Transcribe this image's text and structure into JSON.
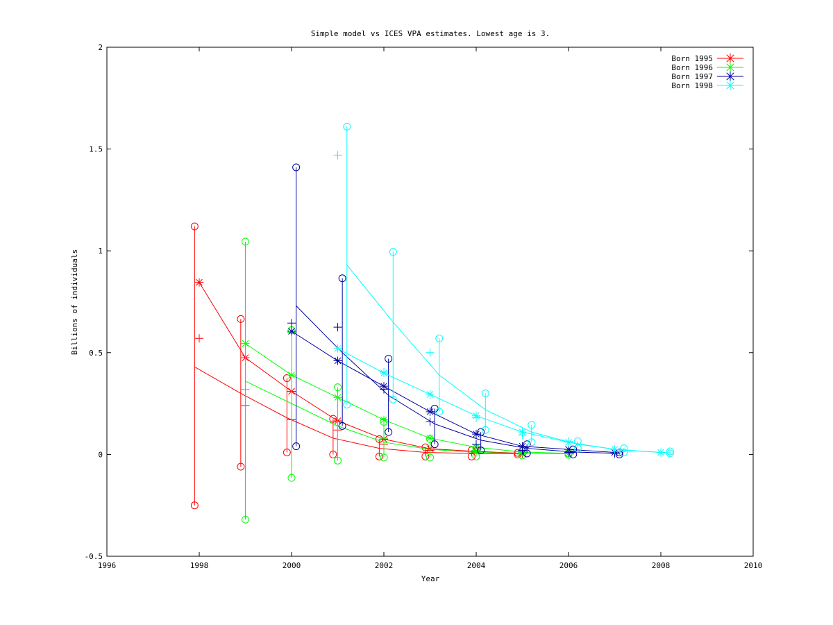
{
  "chart_data": {
    "type": "line",
    "title": "Simple model vs ICES VPA estimates. Lowest age is 3.",
    "xlabel": "Year",
    "ylabel": "Billions of individuals",
    "xlim": [
      1996,
      2010
    ],
    "ylim": [
      -0.5,
      2
    ],
    "xticks": [
      1996,
      1998,
      2000,
      2002,
      2004,
      2006,
      2008,
      2010
    ],
    "xtick_labels": [
      "1996",
      "1998",
      "2000",
      "2002",
      "2004",
      "2006",
      "2008",
      "2010"
    ],
    "yticks": [
      -0.5,
      0,
      0.5,
      1,
      1.5,
      2
    ],
    "ytick_labels": [
      "-0.5",
      "0",
      "0.5",
      "1",
      "1.5",
      "2"
    ],
    "grid": false,
    "legend_position": "top-right",
    "series": [
      {
        "name": "Born 1995",
        "color": "#ff0000",
        "model_x": [
          1997.9,
          1998.9,
          1999.9,
          2000.9,
          2001.9,
          2002.9,
          2003.9,
          2004.9
        ],
        "model_y": [
          0.43,
          0.3,
          0.18,
          0.08,
          0.03,
          0.01,
          0.005,
          0.003
        ],
        "vpa_x": [
          1998.0,
          1999.0,
          2000.0,
          2001.0,
          2002.0,
          2003.0,
          2004.0,
          2005.0
        ],
        "vpa_y": [
          0.845,
          0.475,
          0.31,
          0.165,
          0.075,
          0.028,
          0.015,
          0.005
        ],
        "plus_x": [
          1998.0,
          1999.0,
          2000.0,
          2001.0,
          2002.0,
          2003.0,
          2004.0,
          2005.0
        ],
        "plus_y": [
          0.57,
          0.24,
          0.17,
          0.12,
          0.05,
          0.02,
          0.01,
          0.004
        ],
        "bar_x": [
          1997.9,
          1998.9,
          1999.9,
          2000.9,
          2001.9,
          2002.9,
          2003.9,
          2004.9
        ],
        "bar_low": [
          -0.25,
          -0.06,
          0.01,
          0.0,
          -0.01,
          -0.01,
          -0.01,
          0.0
        ],
        "bar_high": [
          1.12,
          0.665,
          0.375,
          0.175,
          0.075,
          0.035,
          0.02,
          0.008
        ]
      },
      {
        "name": "Born 1996",
        "color": "#00ff00",
        "model_x": [
          1999.0,
          2000.0,
          2001.0,
          2002.0,
          2003.0,
          2004.0,
          2005.0,
          2006.0
        ],
        "model_y": [
          0.36,
          0.25,
          0.14,
          0.06,
          0.025,
          0.01,
          0.005,
          0.003
        ],
        "vpa_x": [
          1999.0,
          2000.0,
          2001.0,
          2002.0,
          2003.0,
          2004.0,
          2005.0,
          2006.0
        ],
        "vpa_y": [
          0.545,
          0.39,
          0.28,
          0.17,
          0.08,
          0.035,
          0.012,
          0.005
        ],
        "plus_x": [
          1999.0,
          2000.0,
          2001.0,
          2002.0,
          2003.0,
          2004.0,
          2005.0,
          2006.0
        ],
        "plus_y": [
          0.32,
          0.6,
          0.16,
          0.08,
          0.08,
          0.02,
          0.01,
          0.005
        ],
        "bar_x": [
          1999.0,
          2000.0,
          2001.0,
          2002.0,
          2003.0,
          2004.0,
          2005.0,
          2006.0
        ],
        "bar_low": [
          -0.32,
          -0.115,
          -0.03,
          -0.015,
          -0.015,
          -0.01,
          -0.005,
          -0.002
        ],
        "bar_high": [
          1.045,
          0.61,
          0.33,
          0.16,
          0.075,
          0.03,
          0.01,
          0.005
        ]
      },
      {
        "name": "Born 1997",
        "color": "#0000a0",
        "model_x": [
          2000.1,
          2001.1,
          2002.1,
          2003.1,
          2004.1,
          2005.1,
          2006.1,
          2007.1
        ],
        "model_y": [
          0.73,
          0.5,
          0.29,
          0.15,
          0.07,
          0.03,
          0.012,
          0.005
        ],
        "vpa_x": [
          2000.0,
          2001.0,
          2002.0,
          2003.0,
          2004.0,
          2005.0,
          2006.0,
          2007.0
        ],
        "vpa_y": [
          0.605,
          0.46,
          0.335,
          0.21,
          0.1,
          0.04,
          0.025,
          0.01
        ],
        "plus_x": [
          2000.0,
          2001.0,
          2002.0,
          2003.0,
          2004.0,
          2005.0,
          2006.0,
          2007.0
        ],
        "plus_y": [
          0.645,
          0.625,
          0.32,
          0.16,
          0.05,
          0.02,
          0.01,
          0.005
        ],
        "bar_x": [
          2000.1,
          2001.1,
          2002.1,
          2003.1,
          2004.1,
          2005.1,
          2006.1,
          2007.1
        ],
        "bar_low": [
          0.04,
          0.14,
          0.11,
          0.05,
          0.02,
          0.005,
          0.0,
          0.0
        ],
        "bar_high": [
          1.41,
          0.865,
          0.47,
          0.225,
          0.11,
          0.05,
          0.025,
          0.01
        ]
      },
      {
        "name": "Born 1998",
        "color": "#00ffff",
        "model_x": [
          2001.2,
          2002.2,
          2003.2,
          2004.2,
          2005.2,
          2006.2,
          2007.2,
          2008.2
        ],
        "model_y": [
          0.93,
          0.65,
          0.39,
          0.22,
          0.11,
          0.05,
          0.02,
          0.008
        ],
        "vpa_x": [
          2001.0,
          2002.0,
          2003.0,
          2004.0,
          2005.0,
          2006.0,
          2007.0,
          2008.0
        ],
        "vpa_y": [
          0.52,
          0.4,
          0.295,
          0.19,
          0.11,
          0.06,
          0.025,
          0.01
        ],
        "plus_x": [
          2001.0,
          2002.0,
          2003.0,
          2004.0,
          2005.0,
          2006.0,
          2007.0,
          2008.0
        ],
        "plus_y": [
          1.47,
          0.405,
          0.5,
          0.18,
          0.095,
          0.065,
          0.025,
          0.01
        ],
        "bar_x": [
          2001.2,
          2002.2,
          2003.2,
          2004.2,
          2005.2,
          2006.2,
          2007.2,
          2008.2
        ],
        "bar_low": [
          0.245,
          0.27,
          0.21,
          0.12,
          0.06,
          0.03,
          0.01,
          0.005
        ],
        "bar_high": [
          1.61,
          0.995,
          0.57,
          0.3,
          0.145,
          0.065,
          0.03,
          0.015
        ]
      }
    ]
  }
}
